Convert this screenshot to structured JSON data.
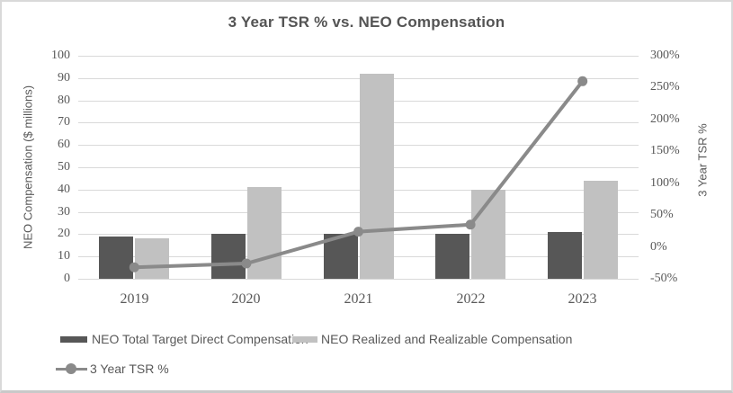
{
  "title": "3 Year TSR % vs. NEO Compensation",
  "colors": {
    "bar_target": "#575757",
    "bar_realized": "#c1c1c1",
    "tsr_line": "#8a8a8a",
    "gridline": "#d9d9d9",
    "text": "#595959"
  },
  "chart_data": {
    "type": "bar",
    "subtype": "grouped bars with secondary-axis line (combo)",
    "title": "3 Year TSR % vs. NEO Compensation",
    "categories": [
      "2019",
      "2020",
      "2021",
      "2022",
      "2023"
    ],
    "series": [
      {
        "name": "NEO Total Target Direct Compensation",
        "type": "bar",
        "axis": "left",
        "values": [
          19,
          20,
          20,
          20,
          21
        ]
      },
      {
        "name": "NEO Realized and Realizable Compensation",
        "type": "bar",
        "axis": "left",
        "values": [
          18,
          41,
          92,
          40,
          44
        ]
      },
      {
        "name": "3 Year TSR %",
        "type": "line",
        "axis": "right",
        "values": [
          -32,
          -26,
          24,
          35,
          260
        ]
      }
    ],
    "left_axis": {
      "title": "NEO Compensation ($ millions)",
      "min": 0,
      "max": 100,
      "step": 10,
      "tick_labels": [
        "100",
        "90",
        "80",
        "70",
        "60",
        "50",
        "40",
        "30",
        "20",
        "10",
        "0"
      ]
    },
    "right_axis": {
      "title": "3 Year TSR %",
      "min": -50,
      "max": 300,
      "step": 50,
      "tick_labels": [
        "300%",
        "250%",
        "200%",
        "150%",
        "100%",
        "50%",
        "0%",
        "-50%"
      ]
    },
    "grid": true,
    "legend_position": "bottom-left",
    "legend": [
      "NEO Total Target Direct Compensation",
      "NEO Realized and Realizable Compensation",
      "3 Year TSR %"
    ]
  }
}
